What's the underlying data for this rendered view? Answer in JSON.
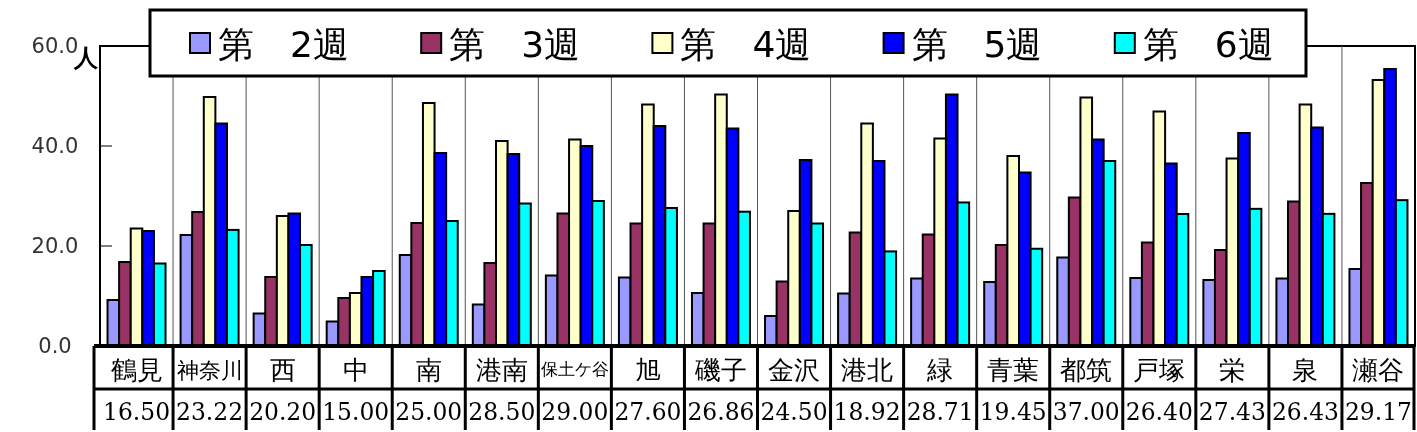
{
  "chart_data": {
    "type": "bar",
    "ylabel": "人",
    "ylim": [
      0,
      60
    ],
    "yticks": [
      {
        "value": 0,
        "label": "0.0"
      },
      {
        "value": 20,
        "label": "20.0"
      },
      {
        "value": 40,
        "label": "40.0"
      },
      {
        "value": 60,
        "label": "60.0"
      }
    ],
    "grid": "x",
    "legend": "top",
    "categories": [
      "鶴見",
      "神奈川",
      "西",
      "中",
      "南",
      "港南",
      "保土ケ谷",
      "旭",
      "磯子",
      "金沢",
      "港北",
      "緑",
      "青葉",
      "都筑",
      "戸塚",
      "栄",
      "泉",
      "瀬谷"
    ],
    "series": [
      {
        "name": "第　2週",
        "color": "#9999ff",
        "values": [
          9.2,
          22.2,
          6.5,
          4.9,
          18.2,
          8.3,
          14.1,
          13.7,
          10.6,
          6.0,
          10.5,
          13.5,
          12.8,
          17.7,
          13.6,
          13.2,
          13.5,
          15.4
        ]
      },
      {
        "name": "第　3週",
        "color": "#993366",
        "values": [
          16.8,
          26.8,
          13.8,
          9.6,
          24.6,
          16.6,
          26.5,
          24.5,
          24.5,
          12.9,
          22.7,
          22.3,
          20.2,
          29.7,
          20.7,
          19.2,
          28.9,
          32.6
        ]
      },
      {
        "name": "第　4週",
        "color": "#ffffcc",
        "values": [
          23.5,
          49.8,
          26.0,
          10.6,
          48.6,
          41.0,
          41.3,
          48.3,
          50.3,
          27.0,
          44.5,
          41.5,
          38.0,
          49.7,
          46.9,
          37.5,
          48.3,
          53.2
        ]
      },
      {
        "name": "第　5週",
        "color": "#0000ff",
        "values": [
          23.0,
          44.5,
          26.5,
          13.8,
          38.6,
          38.4,
          40.0,
          44.0,
          43.5,
          37.2,
          37.0,
          50.3,
          34.7,
          41.3,
          36.5,
          42.6,
          43.7,
          55.4
        ]
      },
      {
        "name": "第　6週",
        "color": "#00ffff",
        "values": [
          16.5,
          23.22,
          20.2,
          15.0,
          25.0,
          28.5,
          29.0,
          27.6,
          26.86,
          24.5,
          18.92,
          28.71,
          19.45,
          37.0,
          26.4,
          27.43,
          26.43,
          29.17
        ],
        "value_labels": [
          "16.50",
          "23.22",
          "20.20",
          "15.00",
          "25.00",
          "28.50",
          "29.00",
          "27.60",
          "26.86",
          "24.50",
          "18.92",
          "28.71",
          "19.45",
          "37.00",
          "26.40",
          "27.43",
          "26.43",
          "29.17"
        ]
      }
    ]
  }
}
